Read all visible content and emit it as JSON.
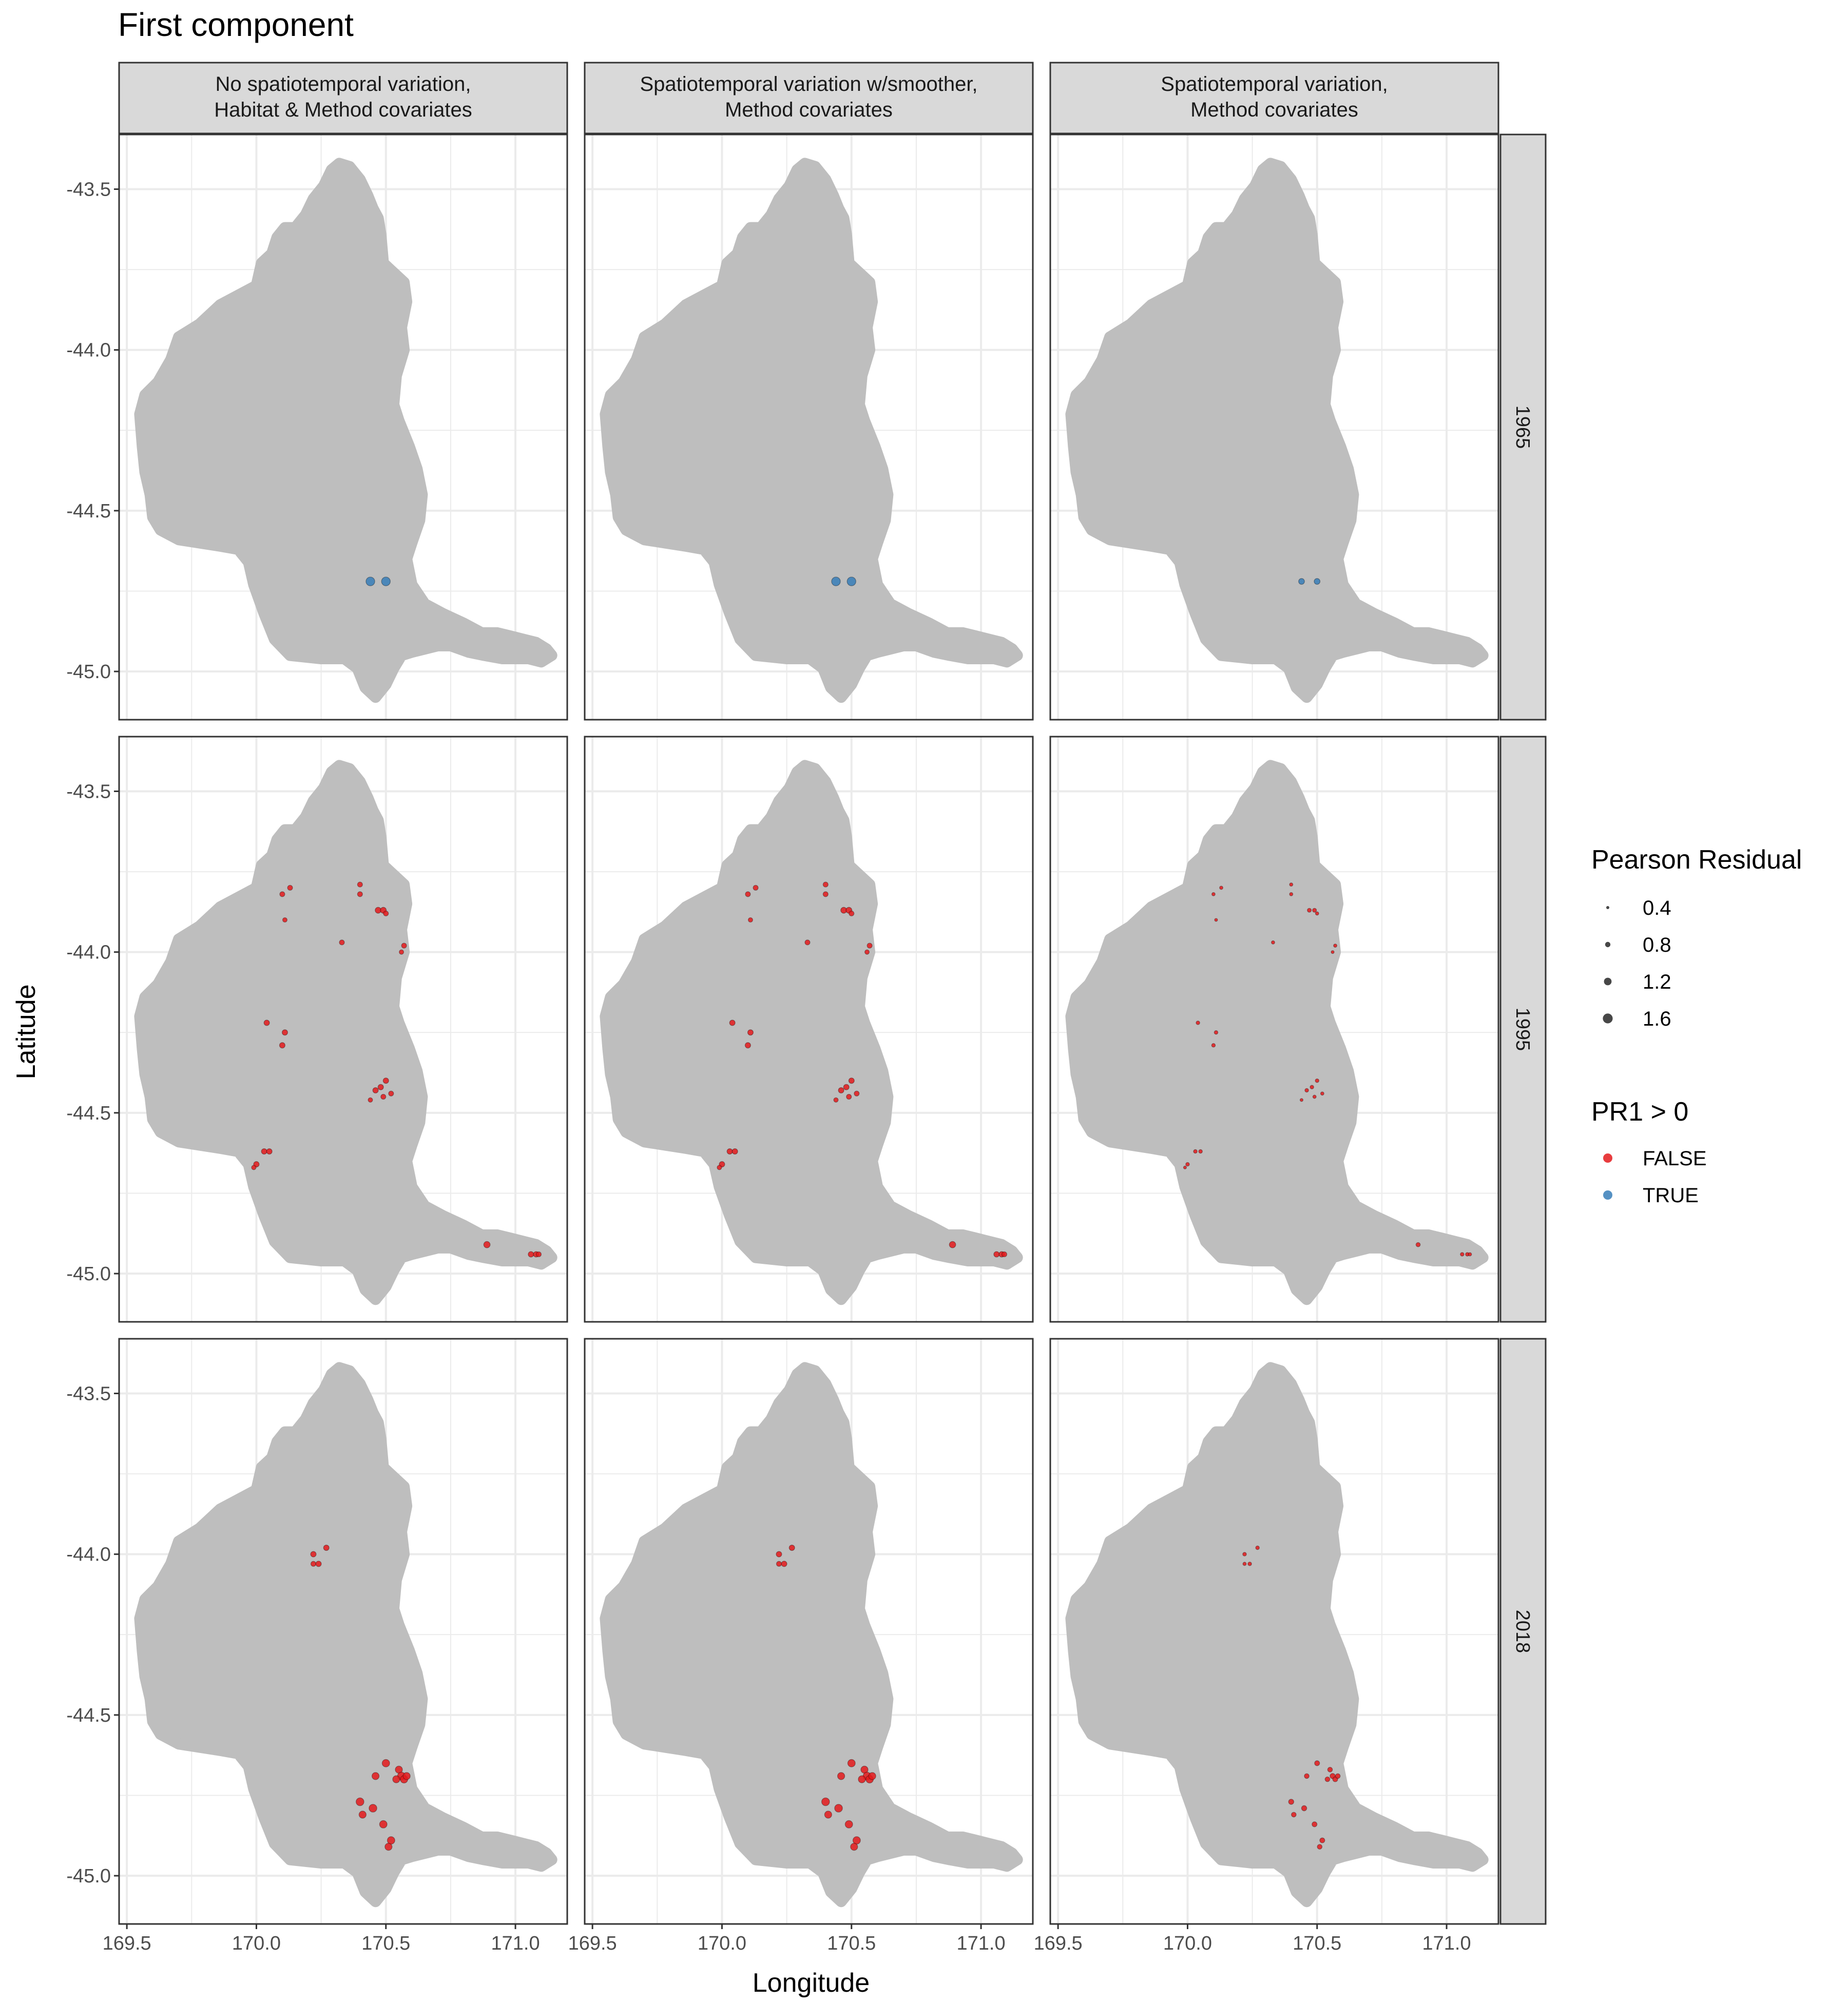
{
  "title": "First component",
  "colors": {
    "false": "#e41a1c",
    "true": "#377eb8",
    "region": "#bebebe",
    "strip": "#d9d9d9",
    "grid_major": "#ebebeb",
    "axis_text": "#4d4d4d"
  },
  "chart_data": {
    "type": "scatter",
    "title": "First component",
    "xlabel": "Longitude",
    "ylabel": "Latitude",
    "xlim": [
      169.47,
      171.2
    ],
    "ylim": [
      -45.15,
      -43.33
    ],
    "x_ticks": [
      169.5,
      170.0,
      170.5,
      171.0
    ],
    "x_tick_labels": [
      "169.5",
      "170.0",
      "170.5",
      "171.0"
    ],
    "y_ticks": [
      -43.5,
      -44.0,
      -44.5,
      -45.0
    ],
    "y_tick_labels": [
      "-43.5",
      "-44.0",
      "-44.5",
      "-45.0"
    ],
    "grid": true,
    "columns": [
      "No spatiotemporal variation,\nHabitat & Method covariates",
      "Spatiotemporal variation w/smoother,\nMethod covariates",
      "Spatiotemporal variation,\nMethod covariates"
    ],
    "rows": [
      "1965",
      "1995",
      "2018"
    ],
    "size_legend": {
      "title": "Pearson Residual",
      "labels": [
        "0.4",
        "0.8",
        "1.2",
        "1.6"
      ],
      "values": [
        0.4,
        0.8,
        1.2,
        1.6
      ]
    },
    "color_legend": {
      "title": "PR1 > 0",
      "labels": [
        "FALSE",
        "TRUE"
      ]
    },
    "residual_scale": [
      1.0,
      1.0,
      0.45
    ],
    "panels": {
      "1965": [
        {
          "x": 170.44,
          "y": -44.72,
          "r": 1.5,
          "pos": true
        },
        {
          "x": 170.5,
          "y": -44.72,
          "r": 1.5,
          "pos": true
        }
      ],
      "1995": [
        {
          "x": 170.1,
          "y": -43.82,
          "r": 0.5,
          "pos": false
        },
        {
          "x": 170.13,
          "y": -43.8,
          "r": 0.5,
          "pos": false
        },
        {
          "x": 170.11,
          "y": -43.9,
          "r": 0.4,
          "pos": false
        },
        {
          "x": 170.4,
          "y": -43.79,
          "r": 0.5,
          "pos": false
        },
        {
          "x": 170.4,
          "y": -43.82,
          "r": 0.5,
          "pos": false
        },
        {
          "x": 170.47,
          "y": -43.87,
          "r": 0.7,
          "pos": false
        },
        {
          "x": 170.49,
          "y": -43.87,
          "r": 0.7,
          "pos": false
        },
        {
          "x": 170.5,
          "y": -43.88,
          "r": 0.5,
          "pos": false
        },
        {
          "x": 170.33,
          "y": -43.97,
          "r": 0.5,
          "pos": false
        },
        {
          "x": 170.57,
          "y": -43.98,
          "r": 0.5,
          "pos": false
        },
        {
          "x": 170.56,
          "y": -44.0,
          "r": 0.4,
          "pos": false
        },
        {
          "x": 170.04,
          "y": -44.22,
          "r": 0.6,
          "pos": false
        },
        {
          "x": 170.11,
          "y": -44.25,
          "r": 0.6,
          "pos": false
        },
        {
          "x": 170.1,
          "y": -44.29,
          "r": 0.6,
          "pos": false
        },
        {
          "x": 170.5,
          "y": -44.4,
          "r": 0.6,
          "pos": false
        },
        {
          "x": 170.48,
          "y": -44.42,
          "r": 0.6,
          "pos": false
        },
        {
          "x": 170.46,
          "y": -44.43,
          "r": 0.6,
          "pos": false
        },
        {
          "x": 170.52,
          "y": -44.44,
          "r": 0.5,
          "pos": false
        },
        {
          "x": 170.49,
          "y": -44.45,
          "r": 0.5,
          "pos": false
        },
        {
          "x": 170.44,
          "y": -44.46,
          "r": 0.4,
          "pos": false
        },
        {
          "x": 170.03,
          "y": -44.62,
          "r": 0.6,
          "pos": false
        },
        {
          "x": 170.05,
          "y": -44.62,
          "r": 0.6,
          "pos": false
        },
        {
          "x": 170.0,
          "y": -44.66,
          "r": 0.6,
          "pos": false
        },
        {
          "x": 169.99,
          "y": -44.67,
          "r": 0.4,
          "pos": false
        },
        {
          "x": 170.89,
          "y": -44.91,
          "r": 0.8,
          "pos": false
        },
        {
          "x": 171.06,
          "y": -44.94,
          "r": 0.6,
          "pos": false
        },
        {
          "x": 171.08,
          "y": -44.94,
          "r": 0.6,
          "pos": false
        },
        {
          "x": 171.09,
          "y": -44.94,
          "r": 0.5,
          "pos": false
        }
      ],
      "2018": [
        {
          "x": 170.22,
          "y": -44.0,
          "r": 0.6,
          "pos": false
        },
        {
          "x": 170.22,
          "y": -44.03,
          "r": 0.5,
          "pos": false
        },
        {
          "x": 170.24,
          "y": -44.03,
          "r": 0.6,
          "pos": false
        },
        {
          "x": 170.27,
          "y": -43.98,
          "r": 0.6,
          "pos": false
        },
        {
          "x": 170.5,
          "y": -44.65,
          "r": 1.1,
          "pos": false
        },
        {
          "x": 170.46,
          "y": -44.69,
          "r": 1.0,
          "pos": false
        },
        {
          "x": 170.55,
          "y": -44.67,
          "r": 1.0,
          "pos": false
        },
        {
          "x": 170.56,
          "y": -44.69,
          "r": 1.2,
          "pos": false
        },
        {
          "x": 170.57,
          "y": -44.7,
          "r": 1.1,
          "pos": false
        },
        {
          "x": 170.58,
          "y": -44.69,
          "r": 1.0,
          "pos": false
        },
        {
          "x": 170.54,
          "y": -44.7,
          "r": 1.0,
          "pos": false
        },
        {
          "x": 170.4,
          "y": -44.77,
          "r": 1.2,
          "pos": false
        },
        {
          "x": 170.45,
          "y": -44.79,
          "r": 1.2,
          "pos": false
        },
        {
          "x": 170.41,
          "y": -44.81,
          "r": 1.0,
          "pos": false
        },
        {
          "x": 170.49,
          "y": -44.84,
          "r": 1.1,
          "pos": false
        },
        {
          "x": 170.52,
          "y": -44.89,
          "r": 1.1,
          "pos": false
        },
        {
          "x": 170.51,
          "y": -44.91,
          "r": 1.0,
          "pos": false
        }
      ]
    }
  }
}
